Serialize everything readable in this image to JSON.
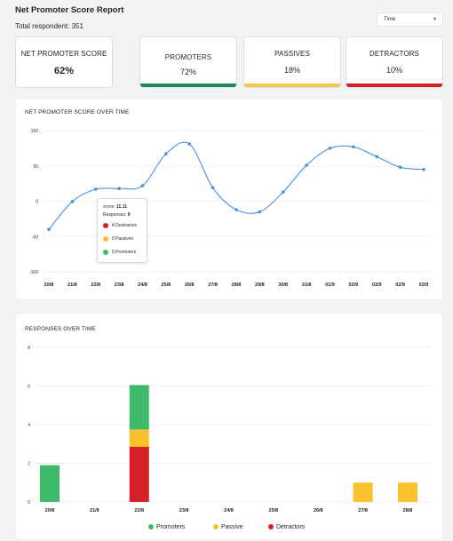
{
  "header": {
    "title": "Net Promoter Score Report",
    "total_respondents": "Total respondent: 351"
  },
  "filter": {
    "selected": "Time"
  },
  "cards": [
    {
      "label": "NET PROMOTER SCORE",
      "value": "62%",
      "accent": ""
    },
    {
      "label": "PROMOTERS",
      "value": "72%",
      "accent": "#1f8a5b"
    },
    {
      "label": "PASSIVES",
      "value": "18%",
      "accent": "#f7c948"
    },
    {
      "label": "DETRACTORS",
      "value": "10%",
      "accent": "#d62020"
    }
  ],
  "tooltip": {
    "score_label": "score:",
    "score_value": "11.11",
    "responses_label": "Responses:",
    "responses_value": "9",
    "detractors": "4 Destractos",
    "passives": "0 Passives",
    "promoters": "5 Promoters"
  },
  "colors": {
    "promoters": "#3dbb6b",
    "passive": "#fbc02d",
    "detractors": "#d62027",
    "line": "#4a90e2"
  },
  "chart_data": [
    {
      "type": "line",
      "title": "NET PROMOTER SCORE OVER TIME",
      "x": [
        "20/8",
        "21/8",
        "22/8",
        "23/8",
        "24/8",
        "25/8",
        "26/8",
        "27/8",
        "28/8",
        "29/8",
        "30/8",
        "31/8",
        "01/9",
        "02/9",
        "02/9",
        "02/9",
        "02/9"
      ],
      "series": [
        {
          "values": [
            -40,
            -0.5,
            17,
            18,
            22,
            67,
            81,
            19,
            -12,
            -15,
            13,
            51,
            75,
            77,
            63,
            48,
            45
          ]
        }
      ],
      "ylim": [
        -100,
        100
      ],
      "yticks": [
        100,
        50,
        0,
        -50,
        -100
      ],
      "grid": true
    },
    {
      "type": "bar",
      "title": "RESPONSES OVER TIME",
      "categories": [
        "20/8",
        "21/8",
        "22/8",
        "23/8",
        "24/8",
        "25/8",
        "26/8",
        "27/8",
        "28/8"
      ],
      "series": [
        {
          "name": "Promoters",
          "values": [
            1.9,
            0,
            2.3,
            0,
            0,
            0,
            0,
            0,
            0
          ]
        },
        {
          "name": "Passive",
          "values": [
            0,
            0,
            0.9,
            0,
            0,
            0,
            0,
            1,
            1
          ]
        },
        {
          "name": "Detractors",
          "values": [
            0,
            0,
            2.85,
            0,
            0,
            0,
            0,
            0,
            0
          ]
        }
      ],
      "stack_order": [
        "Detractors",
        "Passive",
        "Promoters"
      ],
      "ylim": [
        0,
        8
      ],
      "yticks": [
        8,
        6,
        4,
        2,
        0
      ],
      "legend": "bottom",
      "grid": true
    }
  ]
}
